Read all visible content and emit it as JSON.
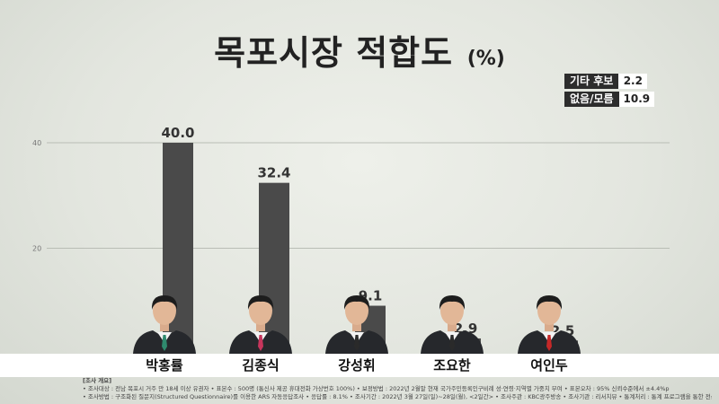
{
  "title": "목포시장 적합도",
  "unit": "(%)",
  "extras": [
    {
      "label": "기타 후보",
      "value": "2.2"
    },
    {
      "label": "없음/모름",
      "value": "10.9"
    }
  ],
  "chart_data": {
    "type": "bar",
    "categories": [
      "박홍률",
      "김종식",
      "강성휘",
      "조요한",
      "여인두"
    ],
    "values": [
      40.0,
      32.4,
      9.1,
      2.9,
      2.5
    ],
    "value_labels": [
      "40.0",
      "32.4",
      "9.1",
      "2.9",
      "2.5"
    ],
    "yticks": [
      "40",
      "20"
    ],
    "ylim": [
      0,
      40
    ],
    "bar_colors": [
      "#4a4a4a",
      "#4a4a4a",
      "#4a4a4a",
      "#4a4a4a",
      "#4a4a4a"
    ],
    "grid": true
  },
  "candidates": [
    "박홍률",
    "김종식",
    "강성휘",
    "조요한",
    "여인두"
  ],
  "tie_colors": [
    "#2f8a6e",
    "#c7355c",
    "#2a2a2a",
    "#2a2a2a",
    "#c62828"
  ],
  "footer": {
    "title": "[조사 개요]",
    "line1": "• 조사대상 : 전남 목포시 거주 만 18세 이상 유권자   • 표본수 : 500명 (통신사 제공 휴대전화 가상번호 100%)   • 보정방법 : 2022년 2월말 현재 국가주민등록인구비례 성·연령·지역별 가중치 부여   • 표본오차 : 95% 신뢰수준에서 ±4.4%p",
    "line2": "• 조사방법 : 구조화된 질문지(Structured Questionnaire)를 이용한 ARS 자동응답조사   • 응답률 : 8.1%   • 조사기간 : 2022년 3월 27일(일)~28일(월), <2일간>   • 조사주관 : KBC광주방송   • 조사기관 : 리서치뷰   • 통계처리 : 통계 프로그램을 통한 전산처리"
  }
}
